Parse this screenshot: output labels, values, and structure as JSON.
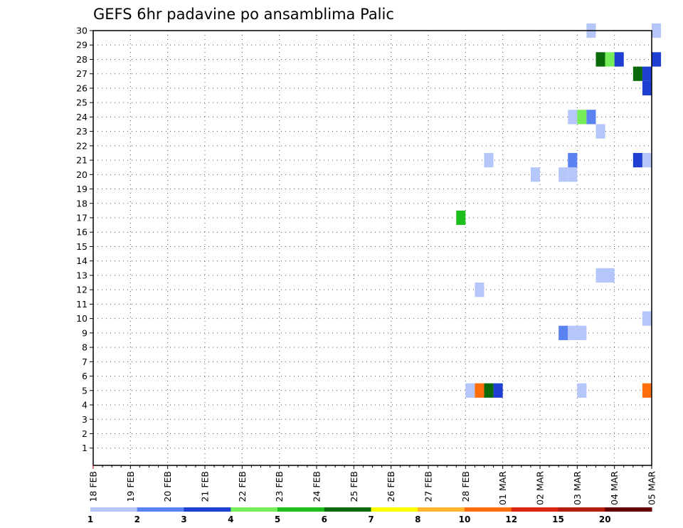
{
  "chart_data": {
    "type": "heatmap",
    "title": "GEFS 6hr padavine po ansamblima Palic",
    "xlabel": "",
    "ylabel": "",
    "x_tick_labels": [
      "18 FEB",
      "19 FEB",
      "20 FEB",
      "21 FEB",
      "22 FEB",
      "23 FEB",
      "24 FEB",
      "25 FEB",
      "26 FEB",
      "27 FEB",
      "28 FEB",
      "01 MAR",
      "02 MAR",
      "03 MAR",
      "04 MAR",
      "05 MAR"
    ],
    "y_tick_labels": [
      "1",
      "2",
      "3",
      "4",
      "5",
      "6",
      "7",
      "8",
      "9",
      "10",
      "11",
      "12",
      "13",
      "14",
      "15",
      "16",
      "17",
      "18",
      "19",
      "20",
      "21",
      "22",
      "23",
      "24",
      "25",
      "26",
      "27",
      "28",
      "29",
      "30"
    ],
    "ylim": [
      0,
      30
    ],
    "grid": true,
    "colorbar": {
      "labels": [
        "1",
        "2",
        "3",
        "4",
        "5",
        "6",
        "7",
        "8",
        "10",
        "12",
        "15",
        "20"
      ],
      "colors": [
        "#b4c6fa",
        "#5a82f0",
        "#1e3fd2",
        "#76ee5a",
        "#1ebe1e",
        "#0a6a0a",
        "#ffff00",
        "#ffb432",
        "#ff6e0a",
        "#dc280a",
        "#b41e0a",
        "#640000"
      ]
    },
    "cells": [
      {
        "member": 5,
        "time": "28 FEB 00Z",
        "value": 1
      },
      {
        "member": 5,
        "time": "28 FEB 06Z",
        "value": 10
      },
      {
        "member": 5,
        "time": "28 FEB 12Z",
        "value": 6
      },
      {
        "member": 5,
        "time": "28 FEB 18Z",
        "value": 3
      },
      {
        "member": 5,
        "time": "03 MAR 00Z",
        "value": 1
      },
      {
        "member": 5,
        "time": "04 MAR 18Z",
        "value": 10
      },
      {
        "member": 9,
        "time": "02 MAR 12Z",
        "value": 2
      },
      {
        "member": 9,
        "time": "02 MAR 18Z",
        "value": 1
      },
      {
        "member": 9,
        "time": "03 MAR 00Z",
        "value": 1
      },
      {
        "member": 10,
        "time": "04 MAR 18Z",
        "value": 1
      },
      {
        "member": 12,
        "time": "28 FEB 06Z",
        "value": 1
      },
      {
        "member": 13,
        "time": "03 MAR 12Z",
        "value": 1
      },
      {
        "member": 13,
        "time": "03 MAR 18Z",
        "value": 1
      },
      {
        "member": 17,
        "time": "27 FEB 18Z",
        "value": 5
      },
      {
        "member": 20,
        "time": "01 MAR 18Z",
        "value": 1
      },
      {
        "member": 20,
        "time": "02 MAR 12Z",
        "value": 1
      },
      {
        "member": 20,
        "time": "02 MAR 18Z",
        "value": 1
      },
      {
        "member": 21,
        "time": "28 FEB 12Z",
        "value": 1
      },
      {
        "member": 21,
        "time": "02 MAR 18Z",
        "value": 2
      },
      {
        "member": 21,
        "time": "04 MAR 12Z",
        "value": 3
      },
      {
        "member": 21,
        "time": "04 MAR 18Z",
        "value": 1
      },
      {
        "member": 23,
        "time": "03 MAR 12Z",
        "value": 1
      },
      {
        "member": 24,
        "time": "02 MAR 18Z",
        "value": 1
      },
      {
        "member": 24,
        "time": "03 MAR 00Z",
        "value": 4
      },
      {
        "member": 24,
        "time": "03 MAR 06Z",
        "value": 2
      },
      {
        "member": 27,
        "time": "04 MAR 12Z",
        "value": 6
      },
      {
        "member": 27,
        "time": "04 MAR 18Z",
        "value": 3
      },
      {
        "member": 26,
        "time": "04 MAR 18Z",
        "value": 3
      },
      {
        "member": 28,
        "time": "03 MAR 12Z",
        "value": 6
      },
      {
        "member": 28,
        "time": "03 MAR 18Z",
        "value": 4
      },
      {
        "member": 28,
        "time": "04 MAR 00Z",
        "value": 3
      },
      {
        "member": 28,
        "time": "05 MAR 00Z",
        "value": 3
      },
      {
        "member": 30,
        "time": "03 MAR 06Z",
        "value": 1
      },
      {
        "member": 30,
        "time": "05 MAR 00Z",
        "value": 1
      }
    ]
  }
}
